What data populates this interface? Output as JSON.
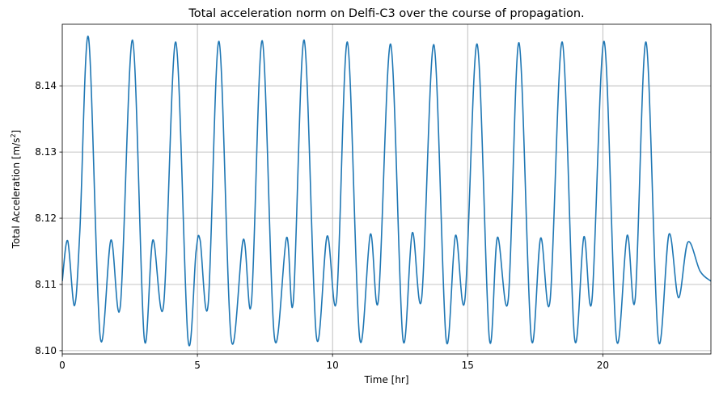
{
  "chart_data": {
    "type": "line",
    "title": "Total acceleration norm on Delfi-C3 over the course of propagation.",
    "xlabel": "Time [hr]",
    "ylabel_text": "Total Acceleration [m/s",
    "ylabel_sup": "2",
    "ylabel_close": "]",
    "xlim": [
      0,
      24
    ],
    "ylim": [
      8.0995,
      8.1493
    ],
    "xticks": [
      0,
      5,
      10,
      15,
      20
    ],
    "xtick_labels": [
      "0",
      "5",
      "10",
      "15",
      "20"
    ],
    "yticks": [
      8.1,
      8.11,
      8.12,
      8.13,
      8.14
    ],
    "ytick_labels": [
      "8.10",
      "8.11",
      "8.12",
      "8.13",
      "8.14"
    ],
    "grid": true,
    "series": [
      {
        "color": "#1f77b4",
        "x": [
          0.0,
          0.2,
          0.45,
          0.65,
          0.97,
          1.4,
          1.8,
          2.15,
          2.6,
          3.03,
          3.35,
          3.75,
          4.2,
          4.65,
          4.95,
          5.1,
          5.4,
          5.8,
          6.25,
          6.7,
          7.0,
          7.4,
          7.85,
          8.3,
          8.55,
          8.95,
          9.4,
          9.8,
          10.15,
          10.55,
          11.0,
          11.4,
          11.7,
          12.15,
          12.6,
          12.95,
          13.3,
          13.75,
          14.2,
          14.55,
          14.9,
          15.35,
          15.8,
          16.1,
          16.5,
          16.9,
          17.35,
          17.7,
          18.05,
          18.5,
          18.95,
          19.3,
          19.6,
          20.05,
          20.5,
          20.9,
          21.2,
          21.6,
          22.05,
          22.45,
          22.8,
          23.15,
          23.6,
          24.0
        ],
        "y": [
          8.1105,
          8.1166,
          8.1068,
          8.118,
          8.1473,
          8.1022,
          8.1167,
          8.1068,
          8.1469,
          8.102,
          8.1167,
          8.1069,
          8.1466,
          8.1018,
          8.115,
          8.1167,
          8.1071,
          8.1467,
          8.1018,
          8.1168,
          8.1073,
          8.1468,
          8.102,
          8.1171,
          8.1075,
          8.1469,
          8.1022,
          8.1173,
          8.1077,
          8.1466,
          8.102,
          8.1176,
          8.1078,
          8.1463,
          8.1019,
          8.1178,
          8.108,
          8.1462,
          8.1018,
          8.1174,
          8.1078,
          8.1463,
          8.1019,
          8.1171,
          8.1077,
          8.1465,
          8.102,
          8.117,
          8.1076,
          8.1466,
          8.102,
          8.1172,
          8.1077,
          8.1467,
          8.1019,
          8.1174,
          8.1079,
          8.1466,
          8.1018,
          8.1176,
          8.108,
          8.1164,
          8.112,
          8.1105
        ]
      }
    ]
  }
}
